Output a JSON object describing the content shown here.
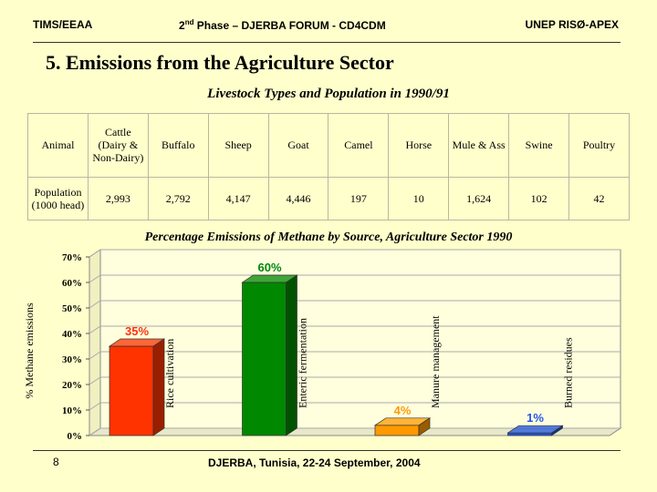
{
  "header": {
    "left": "TIMS/EEAA",
    "center_prefix": "2",
    "center_sup": "nd",
    "center_rest": " Phase – DJERBA FORUM - CD4CDM",
    "right": "UNEP RISØ-APEX"
  },
  "title": "5. Emissions from the Agriculture Sector",
  "table": {
    "caption": "Livestock Types and Population in 1990/91",
    "header": [
      "Animal",
      "Cattle (Dairy & Non-Dairy)",
      "Buffalo",
      "Sheep",
      "Goat",
      "Camel",
      "Horse",
      "Mule & Ass",
      "Swine",
      "Poultry"
    ],
    "row": [
      "Population (1000 head)",
      "2,993",
      "2,792",
      "4,147",
      "4,446",
      "197",
      "10",
      "1,624",
      "102",
      "42"
    ]
  },
  "chart_data": {
    "type": "bar",
    "title": "Percentage Emissions of Methane by Source, Agriculture Sector 1990",
    "ylabel": "% Methane emissions",
    "ylim": [
      0,
      70
    ],
    "yticks": [
      "0%",
      "10%",
      "20%",
      "30%",
      "40%",
      "50%",
      "60%",
      "70%"
    ],
    "categories": [
      "Rice cultivation",
      "Enteric fermentation",
      "Manure management",
      "Burned residues"
    ],
    "values": [
      35,
      60,
      4,
      1
    ],
    "data_labels": [
      "35%",
      "60%",
      "4%",
      "1%"
    ],
    "colors": [
      "#ff3300",
      "#008800",
      "#ff9900",
      "#2255dd"
    ],
    "background": "#ffffcc"
  },
  "footer": {
    "page_number": "8",
    "event": "DJERBA, Tunisia,  22-24 September, 2004"
  }
}
